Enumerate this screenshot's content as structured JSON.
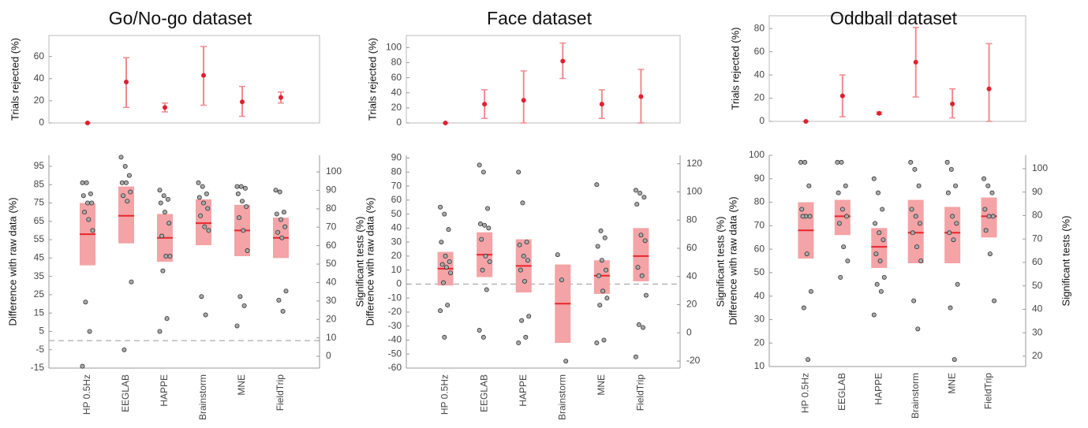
{
  "chart_data": [
    {
      "type": "errorbar",
      "title": "Go/No-go dataset",
      "ylabel": "Trials rejected (%)",
      "values": [
        0,
        37,
        14,
        43,
        19,
        23
      ],
      "low": [
        0,
        14,
        10,
        16,
        6,
        18
      ],
      "high": [
        0,
        59,
        18,
        69,
        33,
        28
      ],
      "color": "#f08a8e",
      "marker_color": "#e02030",
      "ylim": [
        0,
        79
      ],
      "yticks": [
        0,
        20,
        40,
        60
      ]
    },
    {
      "type": "box",
      "categories": [
        "HP 0.5Hz",
        "EEGLAB",
        "HAPPE",
        "Brainstorm",
        "MNE",
        "FieldTrip"
      ],
      "ylabel": "Difference with raw data (%)",
      "y2label": "Significant tests (%)",
      "mean": [
        58,
        68,
        56,
        64,
        60,
        56
      ],
      "box_low": [
        41,
        53,
        43,
        52,
        46,
        45
      ],
      "box_high": [
        75,
        84,
        69,
        77,
        74,
        67
      ],
      "points": [
        [
          86,
          86,
          80,
          79,
          75,
          75,
          70,
          66,
          60,
          21,
          5,
          -14
        ],
        [
          100,
          95,
          90,
          86,
          86,
          81,
          79,
          76,
          32,
          -5
        ],
        [
          82,
          79,
          77,
          75,
          70,
          64,
          57,
          46,
          46,
          38,
          12,
          5
        ],
        [
          86,
          84,
          80,
          78,
          75,
          72,
          68,
          62,
          60,
          24,
          14
        ],
        [
          84,
          84,
          83,
          80,
          76,
          73,
          67,
          60,
          49,
          24,
          19,
          8
        ],
        [
          82,
          81,
          70,
          69,
          66,
          62,
          59,
          56,
          27,
          22,
          16
        ]
      ],
      "color": "#f4a3a6",
      "mean_color": "#e8262c",
      "refline": 0,
      "ylim": [
        -15,
        101
      ],
      "yticks": [
        -15,
        -5,
        5,
        15,
        25,
        35,
        45,
        55,
        65,
        75,
        85,
        95
      ],
      "y2lim": [
        -6.4,
        109
      ],
      "y2ticks": [
        0,
        10,
        20,
        30,
        40,
        50,
        60,
        70,
        80,
        90,
        100
      ]
    },
    {
      "type": "errorbar",
      "title": "Face dataset",
      "ylabel": "Trials rejected (%)",
      "values": [
        0,
        25,
        30,
        82,
        25,
        35
      ],
      "low": [
        0,
        6,
        0,
        59,
        6,
        0
      ],
      "high": [
        0,
        44,
        69,
        106,
        44,
        71
      ],
      "color": "#f08a8e",
      "marker_color": "#e02030",
      "ylim": [
        0,
        116
      ],
      "yticks": [
        0,
        20,
        40,
        60,
        80,
        100
      ]
    },
    {
      "type": "box",
      "categories": [
        "HP 0.5Hz",
        "EEGLAB",
        "HAPPE",
        "Brainstorm",
        "MNE",
        "FieldTrip"
      ],
      "ylabel": "Difference with raw data (%)",
      "y2label": "Significant tests (%)",
      "mean": [
        11,
        21,
        13,
        -14,
        6,
        20
      ],
      "box_low": [
        -1,
        5,
        -6,
        -42,
        -7,
        2
      ],
      "box_high": [
        23,
        37,
        32,
        14,
        17,
        40
      ],
      "points": [
        [
          55,
          50,
          39,
          30,
          20,
          16,
          14,
          12,
          8,
          1,
          -15,
          -19,
          -38
        ],
        [
          85,
          80,
          54,
          43,
          42,
          40,
          32,
          20,
          16,
          10,
          -4,
          -33,
          -38
        ],
        [
          80,
          58,
          30,
          28,
          20,
          17,
          10,
          2,
          -23,
          -26,
          -38,
          -42
        ],
        [
          21,
          3,
          -55
        ],
        [
          71,
          38,
          33,
          27,
          17,
          10,
          6,
          -5,
          -10,
          -15,
          -40,
          -42
        ],
        [
          67,
          65,
          62,
          57,
          35,
          31,
          12,
          6,
          -8,
          -29,
          -31,
          -52
        ]
      ],
      "color": "#f4a3a6",
      "mean_color": "#e8262c",
      "refline": 0,
      "ylim": [
        -60,
        92
      ],
      "yticks": [
        -60,
        -50,
        -40,
        -30,
        -20,
        -10,
        0,
        10,
        20,
        30,
        40,
        50,
        60,
        70,
        80,
        90
      ],
      "y2lim": [
        -25,
        126
      ],
      "y2ticks": [
        -20,
        0,
        20,
        40,
        60,
        80,
        100,
        120
      ]
    },
    {
      "type": "errorbar",
      "title": "Oddball dataset",
      "ylabel": "Trials rejected (%)",
      "values": [
        0,
        22,
        7,
        51,
        15,
        28
      ],
      "low": [
        0,
        4,
        6,
        21,
        3,
        0
      ],
      "high": [
        0,
        40,
        8,
        81,
        28,
        67
      ],
      "color": "#f08a8e",
      "marker_color": "#e02030",
      "ylim": [
        0,
        91
      ],
      "yticks": [
        0,
        20,
        40,
        60,
        80
      ]
    },
    {
      "type": "box",
      "categories": [
        "HP 0.5Hz",
        "EEGLAB",
        "HAPPE",
        "Brainstorm",
        "MNE",
        "FieldTrip"
      ],
      "ylabel": "Difference with raw data (%)",
      "y2label": "Significant tests (%)",
      "mean": [
        68,
        74,
        61,
        67,
        67,
        74
      ],
      "box_low": [
        56,
        66,
        52,
        54,
        54,
        65
      ],
      "box_high": [
        80,
        81,
        69,
        81,
        78,
        82
      ],
      "points": [
        [
          97,
          97,
          87,
          77,
          74,
          74,
          74,
          58,
          42,
          35,
          13
        ],
        [
          97,
          97,
          87,
          84,
          77,
          74,
          71,
          61,
          55,
          48
        ],
        [
          90,
          84,
          77,
          71,
          67,
          64,
          58,
          55,
          48,
          45,
          42,
          32
        ],
        [
          97,
          94,
          87,
          77,
          74,
          71,
          67,
          61,
          55,
          38,
          26
        ],
        [
          97,
          94,
          87,
          84,
          74,
          71,
          67,
          64,
          45,
          35,
          13
        ],
        [
          90,
          87,
          84,
          77,
          74,
          74,
          68,
          58,
          38
        ]
      ],
      "color": "#f4a3a6",
      "mean_color": "#e8262c",
      "ylim": [
        10,
        100
      ],
      "yticks": [
        10,
        20,
        30,
        40,
        50,
        60,
        70,
        80,
        90,
        100
      ],
      "y2lim": [
        15.6,
        105.7
      ],
      "y2ticks": [
        20,
        30,
        40,
        50,
        60,
        70,
        80,
        90,
        100
      ]
    }
  ]
}
